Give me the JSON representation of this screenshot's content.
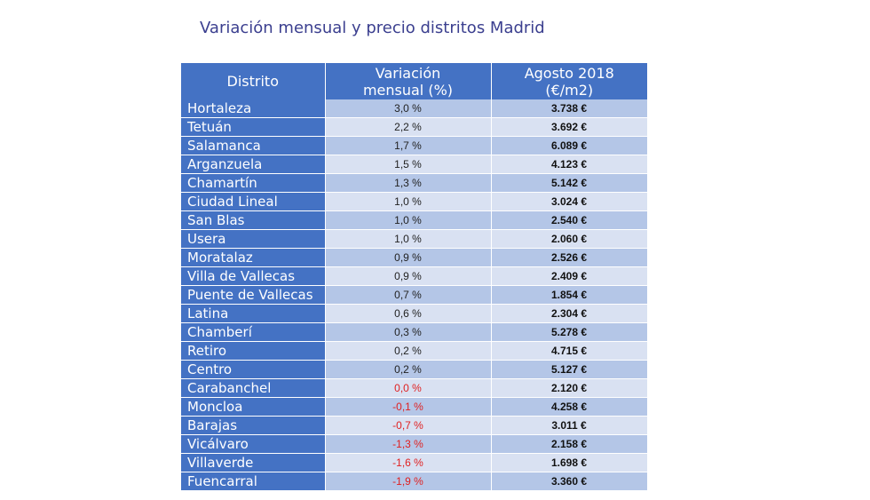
{
  "title": "Variación mensual y precio distritos Madrid",
  "table": {
    "headers": [
      "Distrito",
      "Variación\nmensual (%)",
      "Agosto 2018\n(€/m2)"
    ],
    "rows": [
      {
        "district": "Hortaleza",
        "variation": "3,0 %",
        "price": "3.738 €"
      },
      {
        "district": "Tetuán",
        "variation": "2,2 %",
        "price": "3.692 €"
      },
      {
        "district": "Salamanca",
        "variation": "1,7 %",
        "price": "6.089 €"
      },
      {
        "district": "Arganzuela",
        "variation": "1,5 %",
        "price": "4.123 €"
      },
      {
        "district": "Chamartín",
        "variation": "1,3 %",
        "price": "5.142 €"
      },
      {
        "district": "Ciudad Lineal",
        "variation": "1,0 %",
        "price": "3.024 €"
      },
      {
        "district": "San Blas",
        "variation": "1,0 %",
        "price": "2.540 €"
      },
      {
        "district": "Usera",
        "variation": "1,0 %",
        "price": "2.060 €"
      },
      {
        "district": "Moratalaz",
        "variation": "0,9 %",
        "price": "2.526 €"
      },
      {
        "district": "Villa de Vallecas",
        "variation": "0,9 %",
        "price": "2.409 €"
      },
      {
        "district": "Puente de Vallecas",
        "variation": "0,7 %",
        "price": "1.854 €"
      },
      {
        "district": "Latina",
        "variation": "0,6 %",
        "price": "2.304 €"
      },
      {
        "district": "Chamberí",
        "variation": "0,3 %",
        "price": "5.278 €"
      },
      {
        "district": "Retiro",
        "variation": "0,2 %",
        "price": "4.715 €"
      },
      {
        "district": "Centro",
        "variation": "0,2 %",
        "price": "5.127 €"
      },
      {
        "district": "Carabanchel",
        "variation": "0,0 %",
        "price": "2.120 €",
        "highlight": true
      },
      {
        "district": "Moncloa",
        "variation": "-0,1 %",
        "price": "4.258 €",
        "highlight": true
      },
      {
        "district": "Barajas",
        "variation": "-0,7 %",
        "price": "3.011 €",
        "highlight": true
      },
      {
        "district": "Vicálvaro",
        "variation": "-1,3 %",
        "price": "2.158 €",
        "highlight": true
      },
      {
        "district": "Villaverde",
        "variation": "-1,6 %",
        "price": "1.698 €",
        "highlight": true
      },
      {
        "district": "Fuencarral",
        "variation": "-1,9 %",
        "price": "3.360 €",
        "highlight": true
      }
    ]
  },
  "colors": {
    "header_bg": "#4472c4",
    "row_odd": "#b4c6e7",
    "row_even": "#d9e1f2",
    "negative_text": "#e02020",
    "title_text": "#3b3f8f"
  }
}
